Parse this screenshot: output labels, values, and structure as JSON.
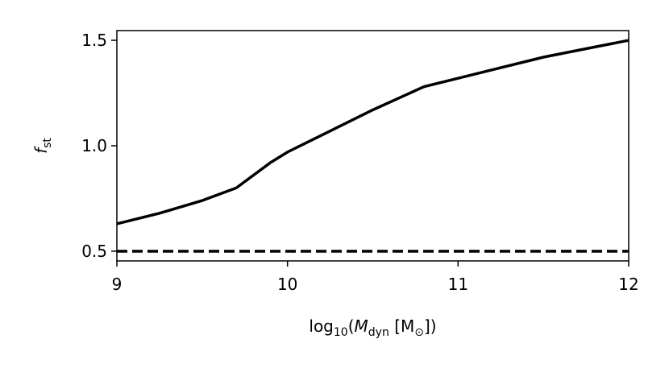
{
  "chart_data": {
    "type": "line",
    "x_label": [
      {
        "text": "log",
        "style": "normal"
      },
      {
        "text": "10",
        "style": "sub"
      },
      {
        "text": "(",
        "style": "normal"
      },
      {
        "text": "M",
        "style": "italic"
      },
      {
        "text": "dyn",
        "style": "sub"
      },
      {
        "text": " [M",
        "style": "normal"
      },
      {
        "text": "⊙",
        "style": "sub"
      },
      {
        "text": "])",
        "style": "normal"
      }
    ],
    "y_label": [
      {
        "text": "f",
        "style": "italic"
      },
      {
        "text": "st",
        "style": "sub"
      }
    ],
    "x": [
      9,
      9.25,
      9.5,
      9.7,
      9.9,
      10,
      10.2,
      10.4,
      10.5,
      10.8,
      11,
      11.25,
      11.5,
      11.75,
      12
    ],
    "series": [
      {
        "color": "#000000",
        "dash": false,
        "values": [
          0.63,
          0.68,
          0.74,
          0.8,
          0.92,
          0.97,
          1.05,
          1.13,
          1.17,
          1.28,
          1.32,
          1.37,
          1.42,
          1.46,
          1.5
        ]
      },
      {
        "color": "#000000",
        "dash": true,
        "values": [
          0.5,
          0.5,
          0.5,
          0.5,
          0.5,
          0.5,
          0.5,
          0.5,
          0.5,
          0.5,
          0.5,
          0.5,
          0.5,
          0.5,
          0.5
        ]
      }
    ],
    "xlim": [
      9,
      12
    ],
    "xticks": [
      9,
      10,
      11,
      12
    ],
    "ylim": [
      0.454,
      1.546
    ],
    "yticks": [
      0.5,
      {
        "value": 1,
        "label": "1.0"
      },
      1.5
    ],
    "grid": false
  }
}
